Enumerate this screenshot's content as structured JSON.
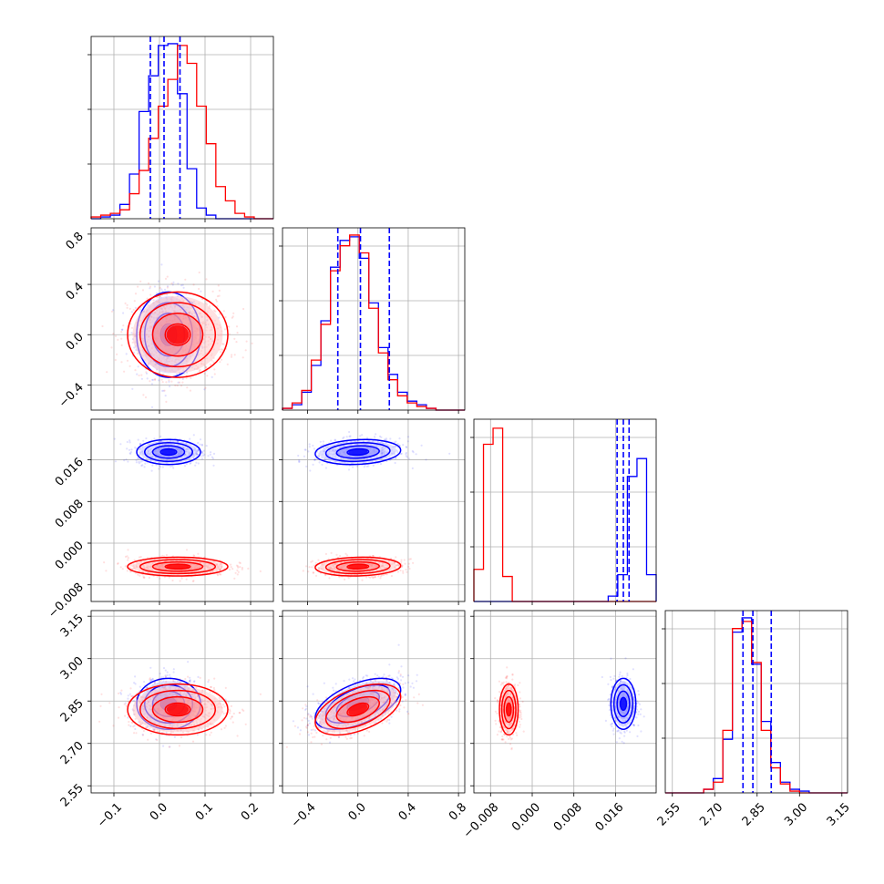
{
  "chart_data": {
    "type": "corner",
    "grid": true,
    "parameters": [
      {
        "lim": [
          -0.15,
          0.25
        ],
        "ticks": [
          -0.1,
          0.0,
          0.1,
          0.2
        ],
        "tick_labels": [
          "−0.1",
          "0.0",
          "0.1",
          "0.2"
        ]
      },
      {
        "lim": [
          -0.6,
          0.85
        ],
        "ticks": [
          -0.4,
          0.0,
          0.4,
          0.8
        ],
        "tick_labels": [
          "−0.4",
          "0.0",
          "0.4",
          "0.8"
        ]
      },
      {
        "lim": [
          -0.0112,
          0.0238
        ],
        "ticks": [
          -0.008,
          0.0,
          0.008,
          0.016
        ],
        "tick_labels": [
          "−0.008",
          "0.000",
          "0.008",
          "0.016"
        ]
      },
      {
        "lim": [
          2.525,
          3.17
        ],
        "ticks": [
          2.55,
          2.7,
          2.85,
          3.0,
          3.15
        ],
        "tick_labels": [
          "2.55",
          "2.70",
          "2.85",
          "3.00",
          "3.15"
        ]
      }
    ],
    "series": [
      {
        "color": "#0000ff",
        "means": [
          0.02,
          0.0,
          0.0175,
          2.84
        ],
        "stds": [
          0.035,
          0.17,
          0.0012,
          0.045
        ],
        "quantiles": [
          [
            -0.02,
            0.01,
            0.045
          ],
          [
            -0.16,
            0.02,
            0.25
          ],
          [
            0.0163,
            0.0175,
            0.0186
          ],
          [
            2.8,
            2.835,
            2.9
          ]
        ],
        "corr": [
          0.0,
          0.0,
          0.0,
          0.15,
          0.55,
          0.0
        ]
      },
      {
        "color": "#ff0000",
        "means": [
          0.04,
          0.0,
          -0.0045,
          2.82
        ],
        "stds": [
          0.055,
          0.17,
          0.0009,
          0.045
        ],
        "quantiles": [],
        "corr": [
          0.0,
          0.0,
          0.0,
          0.1,
          0.5,
          0.0
        ]
      }
    ],
    "histograms": [
      {
        "param": 0,
        "bins": 19,
        "blue": [
          0,
          1,
          2,
          8,
          25,
          60,
          80,
          97,
          98,
          70,
          28,
          6,
          2,
          0,
          0,
          0,
          0,
          0,
          0
        ],
        "red": [
          1,
          2,
          3,
          5,
          14,
          27,
          45,
          63,
          78,
          97,
          87,
          63,
          42,
          18,
          10,
          3,
          1,
          0,
          0
        ]
      },
      {
        "param": 1,
        "bins": 19,
        "blue": [
          1,
          3,
          10,
          25,
          50,
          80,
          95,
          97,
          85,
          60,
          35,
          20,
          10,
          5,
          3,
          1,
          0,
          0,
          0
        ],
        "red": [
          1,
          4,
          11,
          28,
          48,
          78,
          92,
          98,
          88,
          57,
          32,
          17,
          8,
          4,
          2,
          1,
          0,
          0,
          0
        ]
      },
      {
        "param": 2,
        "bins": 19,
        "blue": [
          0,
          0,
          0,
          0,
          0,
          0,
          0,
          0,
          0,
          0,
          0,
          0,
          0,
          0,
          3,
          15,
          70,
          80,
          15
        ],
        "red": [
          18,
          88,
          97,
          14,
          0,
          0,
          0,
          0,
          0,
          0,
          0,
          0,
          0,
          0,
          0,
          0,
          0,
          0,
          0
        ]
      },
      {
        "param": 3,
        "bins": 19,
        "blue": [
          0,
          0,
          0,
          0,
          2,
          8,
          30,
          90,
          98,
          72,
          40,
          17,
          6,
          2,
          1,
          0,
          0,
          0,
          0
        ],
        "red": [
          0,
          0,
          0,
          0,
          2,
          6,
          35,
          92,
          96,
          73,
          35,
          14,
          5,
          1,
          0,
          0,
          0,
          0,
          0
        ]
      }
    ]
  }
}
